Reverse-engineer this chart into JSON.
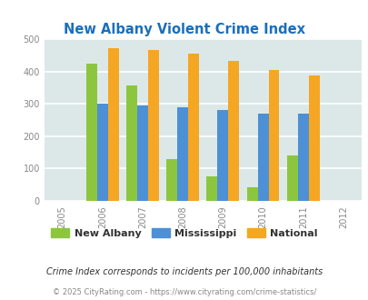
{
  "title": "New Albany Violent Crime Index",
  "title_color": "#1a6fbd",
  "years": [
    2005,
    2006,
    2007,
    2008,
    2009,
    2010,
    2011,
    2012
  ],
  "bar_years": [
    2006,
    2007,
    2008,
    2009,
    2010,
    2011
  ],
  "new_albany": [
    425,
    357,
    128,
    77,
    42,
    140
  ],
  "mississippi": [
    300,
    296,
    290,
    282,
    270,
    270
  ],
  "national": [
    472,
    467,
    455,
    432,
    405,
    387
  ],
  "new_albany_color": "#8cc63f",
  "mississippi_color": "#4d90d5",
  "national_color": "#f5a623",
  "ylim": [
    0,
    500
  ],
  "yticks": [
    0,
    100,
    200,
    300,
    400,
    500
  ],
  "background_color": "#dce8e8",
  "grid_color": "#ffffff",
  "legend_labels": [
    "New Albany",
    "Mississippi",
    "National"
  ],
  "subtitle": "Crime Index corresponds to incidents per 100,000 inhabitants",
  "subtitle_color": "#333333",
  "footer": "© 2025 CityRating.com - https://www.cityrating.com/crime-statistics/",
  "footer_color": "#888888",
  "bar_width": 0.27
}
